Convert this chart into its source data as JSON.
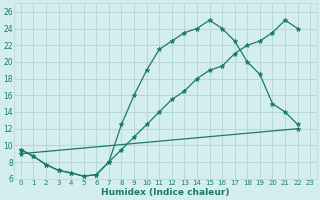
{
  "xlabel": "Humidex (Indice chaleur)",
  "bg_color": "#d4eeee",
  "grid_color": "#b8d8d8",
  "line_color": "#1a7a6a",
  "xlim": [
    -0.5,
    23.5
  ],
  "ylim": [
    6,
    27
  ],
  "xticks": [
    0,
    1,
    2,
    3,
    4,
    5,
    6,
    7,
    8,
    9,
    10,
    11,
    12,
    13,
    14,
    15,
    16,
    17,
    18,
    19,
    20,
    21,
    22,
    23
  ],
  "yticks": [
    6,
    8,
    10,
    12,
    14,
    16,
    18,
    20,
    22,
    24,
    26
  ],
  "line1_x": [
    0,
    1,
    2,
    3,
    4,
    5,
    6,
    7,
    8,
    9,
    10,
    11,
    12,
    13,
    14,
    15,
    16,
    17,
    18,
    19,
    20,
    21,
    22
  ],
  "line1_y": [
    9.5,
    8.7,
    7.7,
    7.0,
    6.7,
    6.3,
    6.5,
    8.0,
    12.5,
    16.0,
    19.0,
    21.5,
    22.5,
    23.5,
    24.0,
    25.0,
    24.0,
    22.5,
    20.0,
    18.5,
    15.0,
    14.0,
    12.5
  ],
  "line2_x": [
    0,
    1,
    2,
    3,
    4,
    5,
    6,
    7,
    8,
    9,
    10,
    11,
    12,
    13,
    14,
    15,
    16,
    17,
    18,
    19,
    20,
    21,
    22
  ],
  "line2_y": [
    9.5,
    8.7,
    7.7,
    7.0,
    6.7,
    6.3,
    6.5,
    8.0,
    9.5,
    11.0,
    12.5,
    14.0,
    15.5,
    16.5,
    18.0,
    19.0,
    19.5,
    21.0,
    22.0,
    22.5,
    23.5,
    25.0,
    24.0
  ],
  "line3_x": [
    0,
    22
  ],
  "line3_y": [
    9.0,
    12.0
  ]
}
